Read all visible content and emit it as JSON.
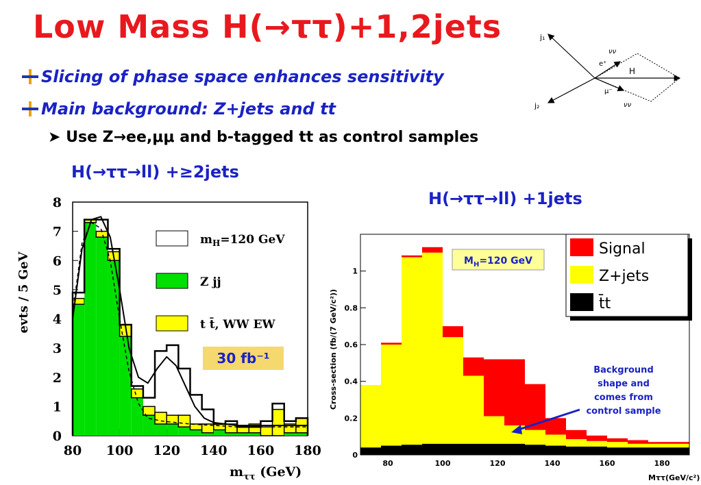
{
  "title": "Low Mass H(→ττ)+1,2jets",
  "bullets": [
    "Slicing of phase space enhances sensitivity",
    "Main background: Z+jets and tt"
  ],
  "sub_bullet": "Use Z→ee,μμ and b-tagged tt as control samples",
  "label_left": "H(→ττ→ll) +≥2jets",
  "label_right": "H(→ττ→ll) +1jets",
  "diagram": {
    "j1": "j₁",
    "j2": "j₂",
    "eplus": "e⁺",
    "muminus": "μ⁻",
    "nu_top": "νν",
    "nu_bottom": "νν",
    "H": "H"
  },
  "colors": {
    "title": "#e8191e",
    "blue_text": "#1a22c4",
    "green": "#00e000",
    "yellow": "#ffff00",
    "red": "#ff0000",
    "black": "#000000",
    "badge": "#f5d86e"
  },
  "chart_data": [
    {
      "type": "bar",
      "ylabel": "evts / 5 GeV",
      "xlabel_main": "m",
      "xlabel_sub": "ττ",
      "xlabel_unit": "(GeV)",
      "xlim": [
        80,
        180
      ],
      "ylim": [
        0,
        8
      ],
      "xticks": [
        "80",
        "100",
        "120",
        "140",
        "160",
        "180"
      ],
      "yticks": [
        "0",
        "1",
        "2",
        "3",
        "4",
        "5",
        "6",
        "7",
        "8"
      ],
      "bin_edges": [
        80,
        85,
        90,
        95,
        100,
        105,
        110,
        115,
        120,
        125,
        130,
        135,
        140,
        145,
        150,
        155,
        160,
        165,
        170,
        175,
        180
      ],
      "series": [
        {
          "name": "Z jj",
          "values": [
            4.5,
            7.3,
            6.8,
            6.0,
            3.4,
            1.3,
            0.7,
            0.4,
            0.4,
            0.3,
            0.2,
            0.1,
            0.2,
            0.1,
            0.1,
            0.1,
            0.0,
            0.0,
            0.1,
            0.1
          ]
        },
        {
          "name": "t t̄, WW EW",
          "values": [
            0.2,
            0.1,
            0.2,
            0.3,
            0.4,
            0.3,
            0.3,
            0.4,
            0.3,
            0.4,
            0.2,
            0.3,
            0.2,
            0.3,
            0.2,
            0.3,
            0.3,
            0.9,
            0.3,
            0.5
          ]
        },
        {
          "name": "m_H=120 GeV",
          "values": [
            4.9,
            7.4,
            7.4,
            6.4,
            3.8,
            1.7,
            1.3,
            2.9,
            3.1,
            2.3,
            1.4,
            0.9,
            0.4,
            0.5,
            0.3,
            0.3,
            0.5,
            1.1,
            0.5,
            0.6
          ]
        }
      ],
      "fit_curve": [
        [
          80,
          4.0
        ],
        [
          84,
          6.4
        ],
        [
          88,
          7.4
        ],
        [
          92,
          7.5
        ],
        [
          96,
          6.8
        ],
        [
          100,
          5.0
        ],
        [
          104,
          3.0
        ],
        [
          108,
          2.0
        ],
        [
          112,
          1.8
        ],
        [
          116,
          2.3
        ],
        [
          120,
          2.7
        ],
        [
          124,
          2.4
        ],
        [
          128,
          1.7
        ],
        [
          132,
          1.0
        ],
        [
          136,
          0.6
        ],
        [
          140,
          0.45
        ],
        [
          150,
          0.35
        ],
        [
          160,
          0.35
        ],
        [
          170,
          0.35
        ],
        [
          180,
          0.35
        ]
      ],
      "bg_curve": [
        [
          80,
          4.2
        ],
        [
          84,
          6.6
        ],
        [
          88,
          7.3
        ],
        [
          92,
          7.1
        ],
        [
          96,
          6.0
        ],
        [
          100,
          4.0
        ],
        [
          104,
          2.2
        ],
        [
          108,
          1.1
        ],
        [
          112,
          0.6
        ],
        [
          118,
          0.5
        ],
        [
          130,
          0.4
        ],
        [
          150,
          0.3
        ],
        [
          180,
          0.3
        ]
      ],
      "legend": [
        "m_H=120 GeV",
        "Z jj",
        "t t̄, WW EW"
      ],
      "annotation": "30 fb⁻¹"
    },
    {
      "type": "bar",
      "ylabel": "Cross-section (fb/(7 GeV/c²))",
      "xlabel": "Mττ(GeV/c²)",
      "xlim": [
        70,
        190
      ],
      "ylim": [
        0,
        1.2
      ],
      "xticks": [
        "80",
        "100",
        "120",
        "140",
        "160",
        "180"
      ],
      "yticks": [
        "0",
        "0.2",
        "0.4",
        "0.6",
        "0.8",
        "1"
      ],
      "bin_edges": [
        70,
        77.5,
        85,
        92.5,
        100,
        107.5,
        115,
        122.5,
        130,
        137.5,
        145,
        152.5,
        160,
        167.5,
        175,
        182.5,
        190
      ],
      "series": [
        {
          "name": "t̄t",
          "values": [
            0.04,
            0.05,
            0.055,
            0.06,
            0.06,
            0.06,
            0.06,
            0.06,
            0.055,
            0.05,
            0.045,
            0.045,
            0.04,
            0.04,
            0.04,
            0.04
          ]
        },
        {
          "name": "Z+jets",
          "values": [
            0.34,
            0.55,
            1.02,
            1.04,
            0.58,
            0.37,
            0.15,
            0.1,
            0.08,
            0.06,
            0.04,
            0.03,
            0.03,
            0.02,
            0.02,
            0.02
          ]
        },
        {
          "name": "Signal",
          "values": [
            0.0,
            0.01,
            0.01,
            0.03,
            0.06,
            0.1,
            0.31,
            0.36,
            0.25,
            0.09,
            0.05,
            0.03,
            0.02,
            0.02,
            0.01,
            0.01
          ]
        }
      ],
      "legend": [
        "Signal",
        "Z+jets",
        "t̄t"
      ],
      "badge": "M_H=120 GeV",
      "annotation": "Background shape and comes from control sample"
    }
  ]
}
